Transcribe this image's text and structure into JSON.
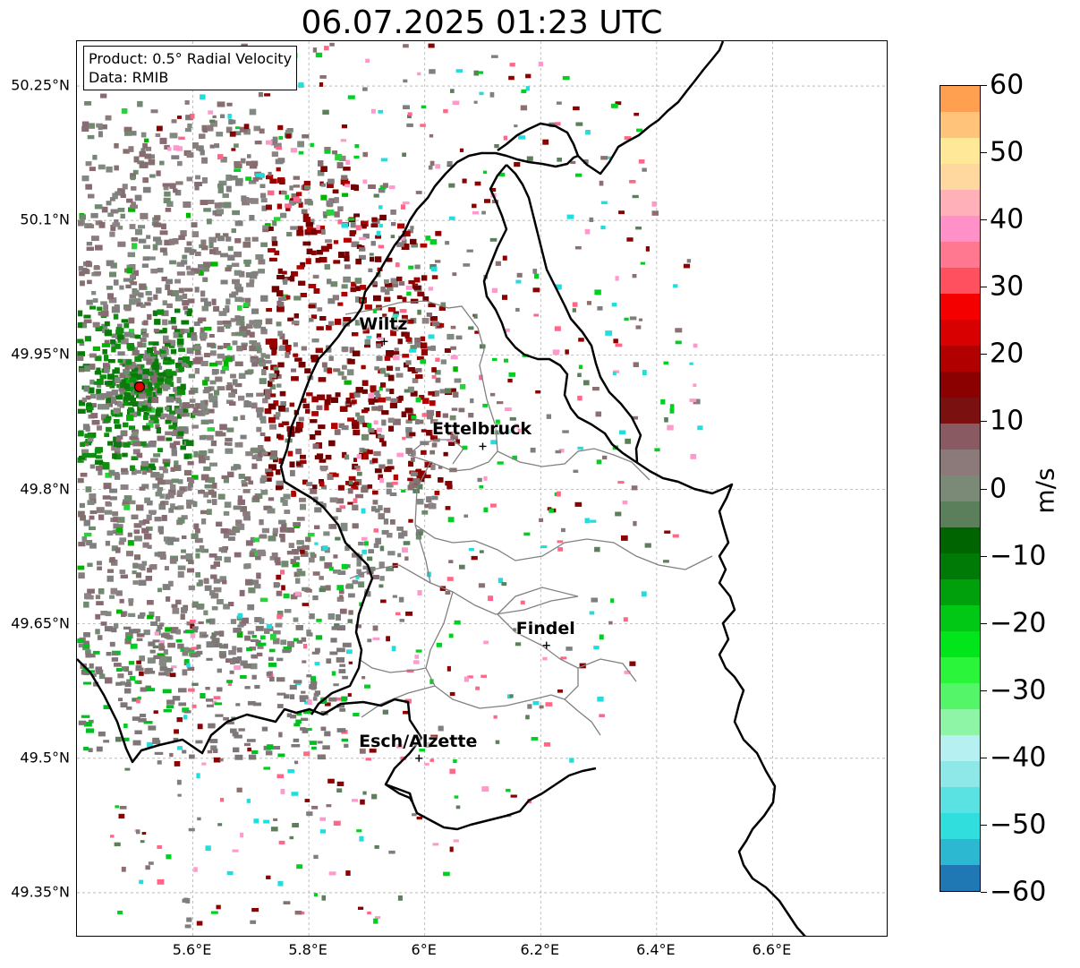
{
  "title": "06.07.2025 01:23 UTC",
  "info_box": {
    "product": "Product: 0.5° Radial Velocity",
    "data": "Data: RMIB"
  },
  "map": {
    "extent": {
      "lon": [
        5.4,
        6.8
      ],
      "lat": [
        49.3,
        50.3
      ]
    },
    "radar_site": {
      "lon": 5.505,
      "lat": 49.915,
      "marker_color": "#e00000"
    },
    "lat_ticks": [
      "50.25°N",
      "50.1°N",
      "49.95°N",
      "49.8°N",
      "49.65°N",
      "49.5°N",
      "49.35°N"
    ],
    "lat_values": [
      50.25,
      50.1,
      49.95,
      49.8,
      49.65,
      49.5,
      49.35
    ],
    "lon_ticks": [
      "5.6°E",
      "5.8°E",
      "6°E",
      "6.2°E",
      "6.4°E",
      "6.6°E"
    ],
    "lon_values": [
      5.6,
      5.8,
      6.0,
      6.2,
      6.4,
      6.6
    ],
    "cities": [
      {
        "name": "Wiltz",
        "lon": 5.93,
        "lat": 49.965
      },
      {
        "name": "Ettelbruck",
        "lon": 6.1,
        "lat": 49.848
      },
      {
        "name": "Findel",
        "lon": 6.21,
        "lat": 49.626
      },
      {
        "name": "Esch/Alzette",
        "lon": 5.99,
        "lat": 49.5
      }
    ]
  },
  "colorbar": {
    "label": "m/s",
    "min": -60,
    "max": 60,
    "ticks": [
      "60",
      "50",
      "40",
      "30",
      "20",
      "10",
      "0",
      "−10",
      "−20",
      "−30",
      "−40",
      "−50",
      "−60"
    ],
    "tick_values": [
      60,
      50,
      40,
      30,
      20,
      10,
      0,
      -10,
      -20,
      -30,
      -40,
      -50,
      -60
    ],
    "colors": [
      "#1f77b4",
      "#2bb8d0",
      "#30dede",
      "#5ae2e2",
      "#8ee8e8",
      "#b6f0f0",
      "#8ef5a6",
      "#55f56a",
      "#2af53a",
      "#00e61a",
      "#00c814",
      "#00a00c",
      "#007a06",
      "#006400",
      "#5a7f5a",
      "#7b8a77",
      "#8c7a7a",
      "#8a5a62",
      "#7a1010",
      "#8b0000",
      "#b00000",
      "#d80000",
      "#f50000",
      "#ff5060",
      "#ff7890",
      "#ff90c8",
      "#ffb0b8",
      "#ffd8a0",
      "#ffe898",
      "#ffc47a",
      "#ffa050"
    ]
  }
}
